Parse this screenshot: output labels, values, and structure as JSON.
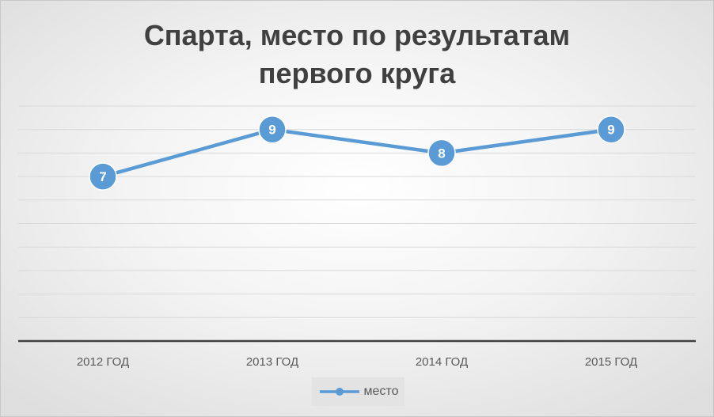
{
  "chart_data": {
    "type": "line",
    "title": "Спарта, место по результатам первого круга",
    "categories": [
      "2012 ГОД",
      "2013 ГОД",
      "2014 ГОД",
      "2015 ГОД"
    ],
    "series": [
      {
        "name": "место",
        "values": [
          7,
          9,
          8,
          9
        ],
        "color": "#5b9bd5"
      }
    ],
    "ylim": [
      0,
      10
    ],
    "grid": true,
    "legend": "bottom",
    "data_labels": [
      "7",
      "9",
      "8",
      "9"
    ]
  }
}
